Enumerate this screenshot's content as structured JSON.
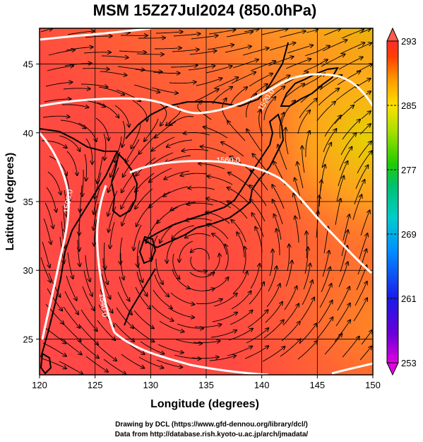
{
  "title": "MSM 15Z27Jul2024 (850.0hPa)",
  "map": {
    "lon_range": [
      120,
      150
    ],
    "lat_range": [
      22.4,
      47.6
    ],
    "lon_ticks": [
      120,
      125,
      130,
      135,
      140,
      145,
      150
    ],
    "lat_ticks": [
      25,
      30,
      35,
      40,
      45
    ],
    "xlabel": "Longitude (degrees)",
    "ylabel": "Latitude  (degrees)",
    "field_colors": [
      "#ff4a4a",
      "#ff5a3c",
      "#ff7a2a",
      "#ffb31a",
      "#e8d800"
    ],
    "streamline_color": "#000000",
    "contour_color": "#ffffff",
    "contour_labels": [
      "1500.0",
      "1520.0",
      "1540.0",
      "1560.0",
      "1520.0"
    ],
    "vortex_center": [
      134.5,
      30.8
    ]
  },
  "colorbar": {
    "min": 253,
    "max": 293,
    "tick_labels": [
      "293",
      "285",
      "277",
      "269",
      "261",
      "253"
    ],
    "colors": [
      "#e000e0",
      "#6a00d8",
      "#1a1ae8",
      "#0090ff",
      "#00cccc",
      "#00c070",
      "#22cc00",
      "#a8e000",
      "#ffe000",
      "#ff9a00",
      "#ff4000",
      "#ff2a2a"
    ]
  },
  "footer": {
    "line1": "Drawing by DCL (https://www.gfd-dennou.org/library/dcl/)",
    "line2": "Data from http://database.rish.kyoto-u.ac.jp/arch/jmadata/"
  }
}
